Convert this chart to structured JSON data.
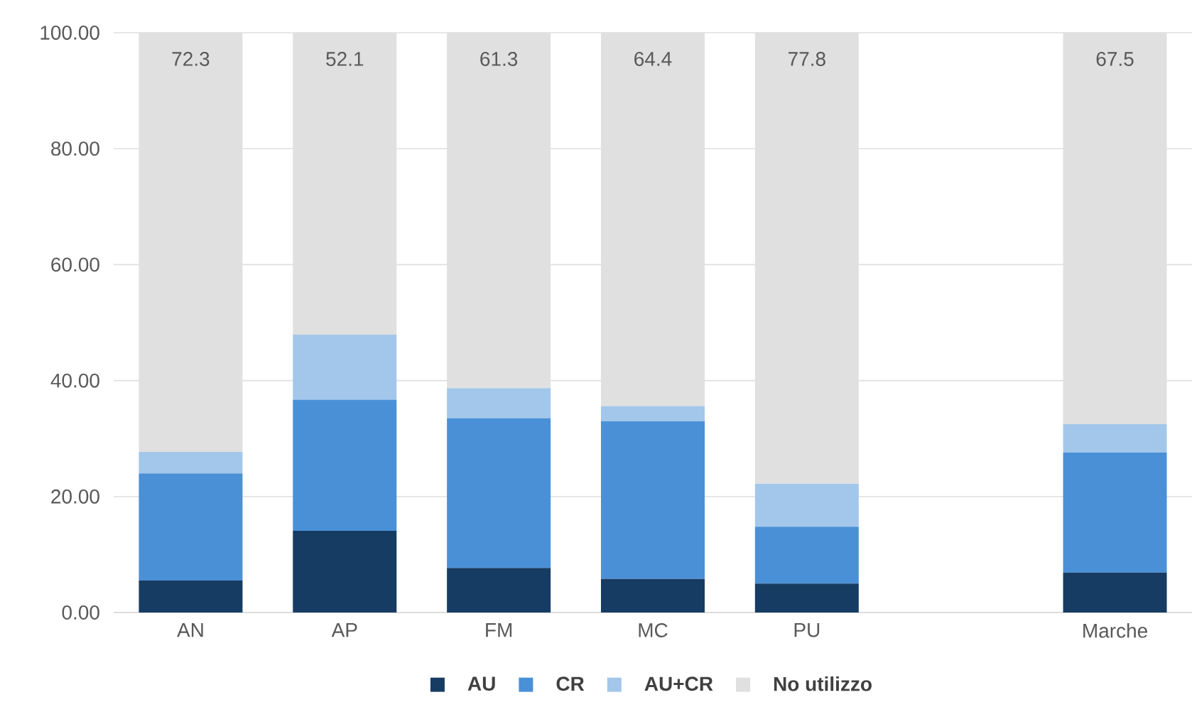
{
  "chart_data": {
    "type": "bar",
    "stacked": true,
    "categories": [
      "AN",
      "AP",
      "FM",
      "MC",
      "PU",
      null,
      "Marche"
    ],
    "series": [
      {
        "name": "AU",
        "color": "#173c63",
        "values": [
          5.5,
          14.1,
          7.7,
          5.8,
          5.0,
          null,
          6.9
        ]
      },
      {
        "name": "CR",
        "color": "#4a90d6",
        "values": [
          18.5,
          22.6,
          25.8,
          27.2,
          9.8,
          null,
          20.7
        ]
      },
      {
        "name": "AU+CR",
        "color": "#a3c7ea",
        "values": [
          3.7,
          11.2,
          5.2,
          2.6,
          7.4,
          null,
          4.9
        ]
      },
      {
        "name": "No utilizzo",
        "color": "#e0e0e0",
        "values": [
          72.3,
          52.1,
          61.3,
          64.4,
          77.8,
          null,
          67.5
        ],
        "value_labels": [
          "72.3",
          "52.1",
          "61.3",
          "64.4",
          "77.8",
          null,
          "67.5"
        ]
      }
    ],
    "ylim": [
      0,
      100
    ],
    "yticks": [
      {
        "value": 0,
        "label": "0.00"
      },
      {
        "value": 20,
        "label": "20.00"
      },
      {
        "value": 40,
        "label": "40.00"
      },
      {
        "value": 60,
        "label": "60.00"
      },
      {
        "value": 80,
        "label": "80.00"
      },
      {
        "value": 100,
        "label": "100.00"
      }
    ],
    "grid": "y",
    "legend": "bottom"
  }
}
